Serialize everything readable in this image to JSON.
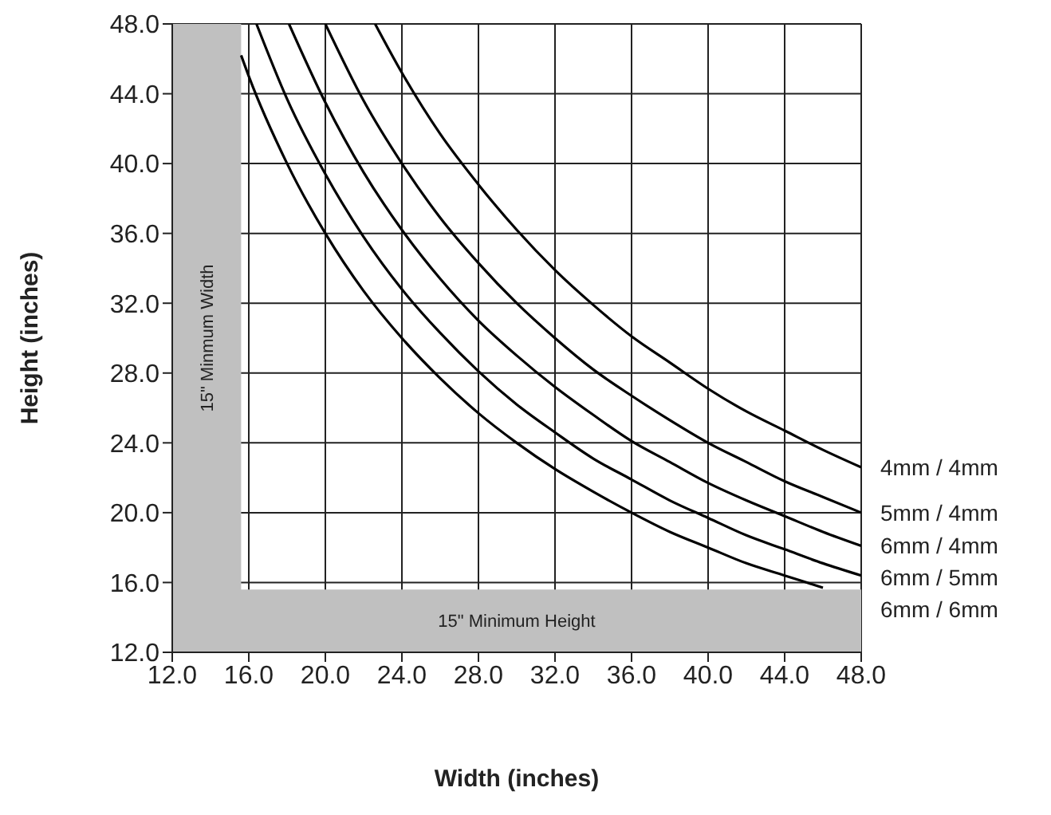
{
  "chart_data": {
    "type": "line",
    "xlabel": "Width (inches)",
    "ylabel": "Height (inches)",
    "xlim": [
      12,
      48
    ],
    "ylim": [
      12,
      48
    ],
    "xticks": [
      {
        "value": 12,
        "label": "12.0"
      },
      {
        "value": 16,
        "label": "16.0"
      },
      {
        "value": 20,
        "label": "20.0"
      },
      {
        "value": 24,
        "label": "24.0"
      },
      {
        "value": 28,
        "label": "28.0"
      },
      {
        "value": 32,
        "label": "32.0"
      },
      {
        "value": 36,
        "label": "36.0"
      },
      {
        "value": 40,
        "label": "40.0"
      },
      {
        "value": 44,
        "label": "44.0"
      },
      {
        "value": 48,
        "label": "48.0"
      }
    ],
    "yticks": [
      {
        "value": 12,
        "label": "12.0"
      },
      {
        "value": 16,
        "label": "16.0"
      },
      {
        "value": 20,
        "label": "20.0"
      },
      {
        "value": 24,
        "label": "24.0"
      },
      {
        "value": 28,
        "label": "28.0"
      },
      {
        "value": 32,
        "label": "32.0"
      },
      {
        "value": 36,
        "label": "36.0"
      },
      {
        "value": 40,
        "label": "40.0"
      },
      {
        "value": 44,
        "label": "44.0"
      },
      {
        "value": 48,
        "label": "48.0"
      }
    ],
    "grid": true,
    "marker": "none",
    "line_style": "solid",
    "legend": false,
    "bands": [
      {
        "axis": "x",
        "from": 12,
        "to": 15.6,
        "label": "15\" Minmum Width",
        "color": "#c0c0c0"
      },
      {
        "axis": "y",
        "from": 12,
        "to": 15.6,
        "label": "15\" Minimum Height",
        "color": "#c0c0c0"
      }
    ],
    "series": [
      {
        "name": "4mm / 4mm",
        "color": "#000000",
        "x": [
          22.6,
          24,
          26,
          28,
          30,
          32,
          34,
          36,
          38,
          40,
          42,
          44,
          46,
          48
        ],
        "values": [
          48.0,
          45.2,
          41.7,
          38.8,
          36.2,
          33.9,
          31.9,
          30.1,
          28.6,
          27.1,
          25.8,
          24.7,
          23.6,
          22.6
        ]
      },
      {
        "name": "5mm / 4mm",
        "color": "#000000",
        "x": [
          20,
          22,
          24,
          26,
          28,
          30,
          32,
          34,
          36,
          38,
          40,
          42,
          44,
          46,
          48
        ],
        "values": [
          48.0,
          43.6,
          40.0,
          36.9,
          34.3,
          32.0,
          30.0,
          28.2,
          26.7,
          25.3,
          24.0,
          22.9,
          21.8,
          20.9,
          20.0
        ]
      },
      {
        "name": "6mm / 4mm",
        "color": "#000000",
        "x": [
          18.1,
          20,
          22,
          24,
          26,
          28,
          30,
          32,
          34,
          36,
          38,
          40,
          42,
          44,
          46,
          48
        ],
        "values": [
          48.0,
          43.5,
          39.5,
          36.2,
          33.4,
          31.0,
          29.0,
          27.2,
          25.6,
          24.1,
          22.9,
          21.7,
          20.7,
          19.8,
          18.9,
          18.1
        ]
      },
      {
        "name": "6mm / 5mm",
        "color": "#000000",
        "x": [
          16.4,
          18,
          20,
          22,
          24,
          26,
          28,
          30,
          32,
          34,
          36,
          38,
          40,
          42,
          44,
          46,
          48
        ],
        "values": [
          48.0,
          43.7,
          39.4,
          35.8,
          32.8,
          30.3,
          28.1,
          26.2,
          24.6,
          23.1,
          21.9,
          20.7,
          19.7,
          18.7,
          17.9,
          17.1,
          16.4
        ]
      },
      {
        "name": "6mm / 6mm",
        "color": "#000000",
        "x": [
          15.6,
          16,
          18,
          20,
          22,
          24,
          26,
          28,
          30,
          32,
          34,
          36,
          38,
          40,
          42,
          44,
          46
        ],
        "values": [
          46.2,
          45.0,
          40.0,
          36.0,
          32.7,
          30.0,
          27.7,
          25.7,
          24.0,
          22.5,
          21.2,
          20.0,
          18.9,
          18.0,
          17.1,
          16.4,
          15.7
        ]
      }
    ]
  }
}
